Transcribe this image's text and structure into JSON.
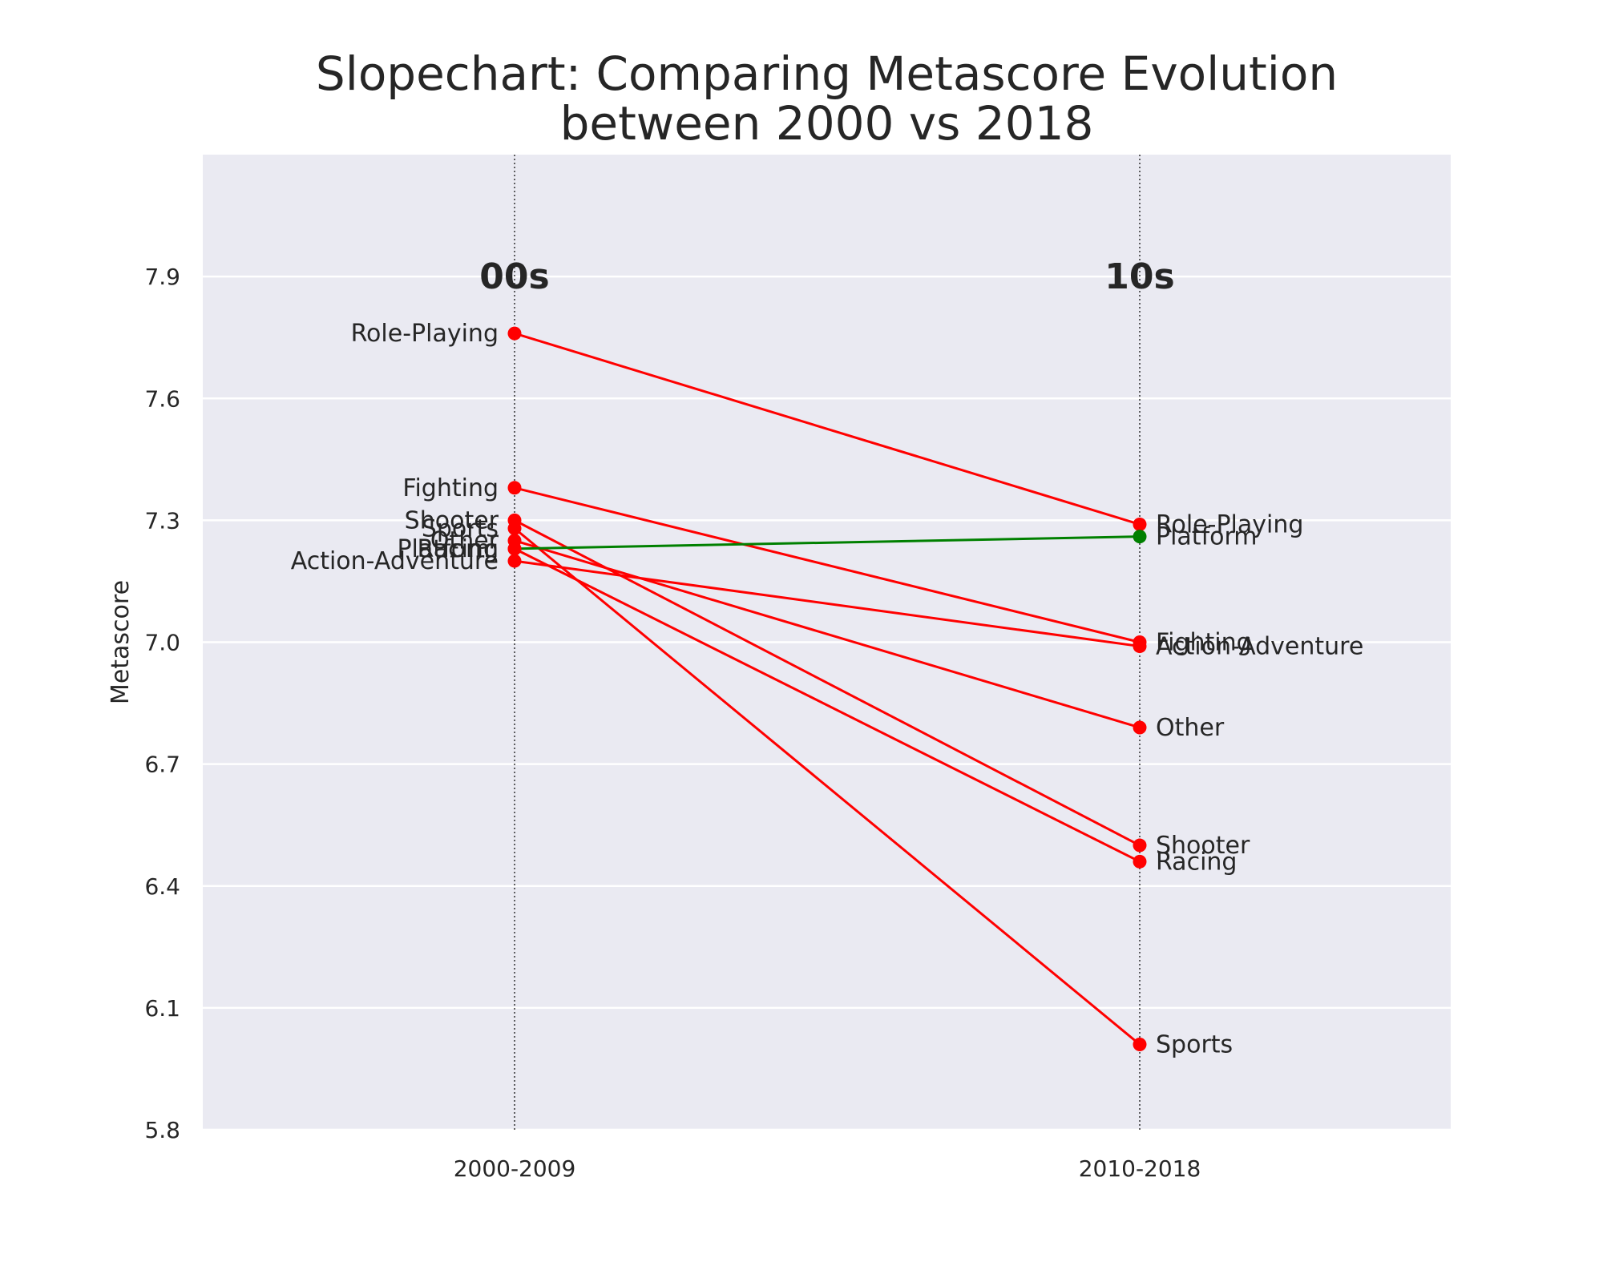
{
  "chart_data": {
    "type": "line",
    "title_lines": [
      "Slopechart: Comparing Metascore Evolution",
      "between 2000 vs 2018"
    ],
    "ylabel": "Metascore",
    "xlabel": "",
    "x_categories": [
      "2000-2009",
      "2010-2018"
    ],
    "period_labels": [
      "00s",
      "10s"
    ],
    "ylim": [
      5.8,
      8.2
    ],
    "yticks": [
      "5.8",
      "6.1",
      "6.4",
      "6.7",
      "7.0",
      "7.3",
      "7.6",
      "7.9"
    ],
    "grid": true,
    "colors": {
      "increase": "#008000",
      "decrease": "#ff0000",
      "background": "#eaeaf2",
      "grid": "#ffffff"
    },
    "series": [
      {
        "name": "Role-Playing",
        "values": [
          7.76,
          7.29
        ],
        "trend": "decrease"
      },
      {
        "name": "Fighting",
        "values": [
          7.38,
          7.0
        ],
        "trend": "decrease"
      },
      {
        "name": "Shooter",
        "values": [
          7.3,
          6.5
        ],
        "trend": "decrease"
      },
      {
        "name": "Sports",
        "values": [
          7.28,
          6.01
        ],
        "trend": "decrease"
      },
      {
        "name": "Other",
        "values": [
          7.25,
          6.79
        ],
        "trend": "decrease"
      },
      {
        "name": "Racing",
        "values": [
          7.23,
          6.46
        ],
        "trend": "decrease"
      },
      {
        "name": "Platform",
        "values": [
          7.23,
          7.26
        ],
        "trend": "increase"
      },
      {
        "name": "Action-Adventure",
        "values": [
          7.2,
          6.99
        ],
        "trend": "decrease"
      }
    ]
  }
}
